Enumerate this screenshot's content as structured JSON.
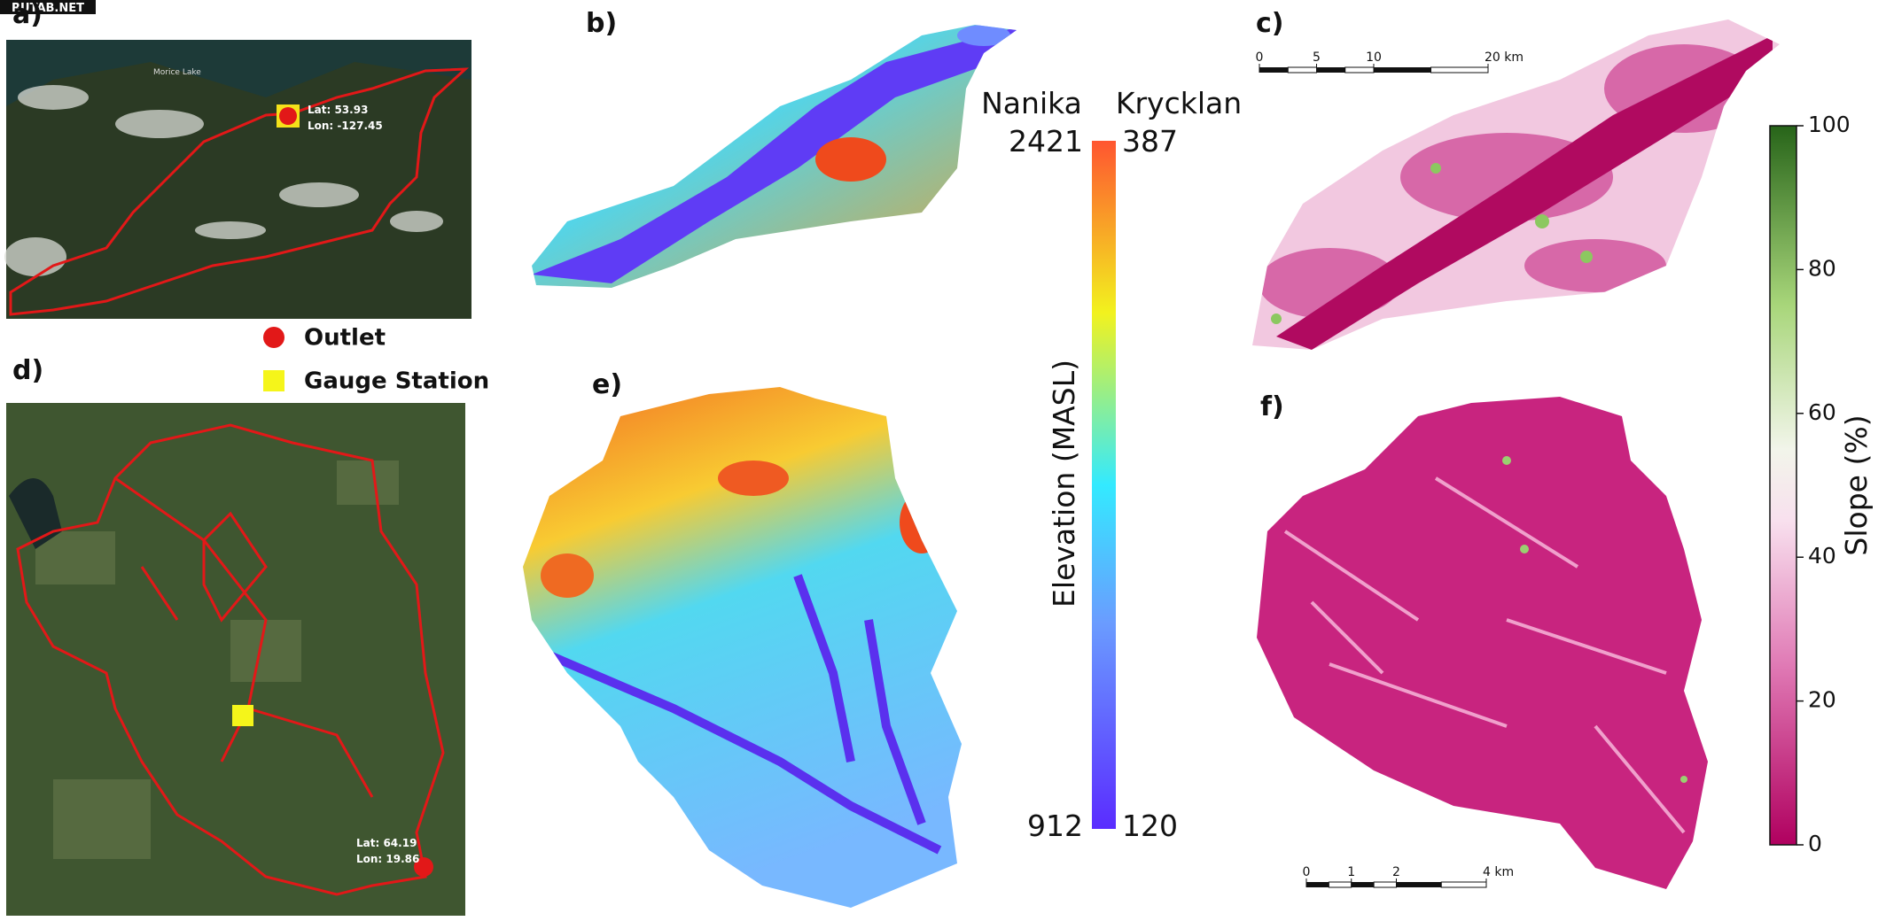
{
  "watermark": "RUTAB.NET",
  "panels": {
    "a": {
      "label": "a)",
      "lake": "Morice Lake",
      "lat": "Lat: 53.93",
      "lon": "Lon: -127.45"
    },
    "b": {
      "label": "b)"
    },
    "c": {
      "label": "c)"
    },
    "d": {
      "label": "d)",
      "lat": "Lat: 64.19",
      "lon": "Lon: 19.86"
    },
    "e": {
      "label": "e)"
    },
    "f": {
      "label": "f)"
    }
  },
  "legend": {
    "outlet": "Outlet",
    "gauge": "Gauge Station"
  },
  "elevation_colorbar": {
    "label": "Elevation (MASL)",
    "columns": [
      {
        "name": "Nanika",
        "max": 2421,
        "min": 912
      },
      {
        "name": "Krycklan",
        "max": 387,
        "min": 120
      }
    ]
  },
  "slope_colorbar": {
    "label": "Slope (%)",
    "range": [
      0,
      100
    ],
    "ticks": [
      0,
      20,
      40,
      60,
      80,
      100
    ]
  },
  "scale_bars": {
    "c": {
      "range": [
        0,
        20
      ],
      "ticks": [
        0,
        5,
        10,
        {
          "value": 20,
          "label": "20 km"
        }
      ]
    },
    "f": {
      "range": [
        0,
        4
      ],
      "ticks": [
        0,
        1,
        2,
        {
          "value": 4,
          "label": "4 km"
        }
      ]
    }
  }
}
